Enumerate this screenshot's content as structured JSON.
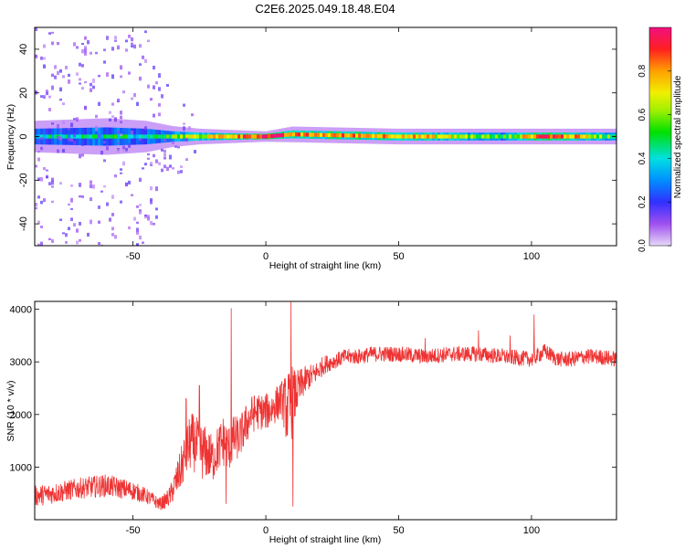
{
  "figure_title": "C2E6.2025.049.18.48.E04",
  "colors": {
    "snr_line": "#ee3333",
    "frame": "#000000",
    "background": "#ffffff"
  },
  "chart_data": [
    {
      "type": "heatmap",
      "title": "",
      "xlabel": "Height of straight line (km)",
      "ylabel": "Frequency (Hz)",
      "xlim": [
        -87,
        132
      ],
      "ylim": [
        -50,
        50
      ],
      "xticks": [
        -50,
        0,
        50,
        100
      ],
      "yticks": [
        -40,
        -20,
        0,
        20,
        40
      ],
      "colormap": "rainbow (purple-blue-cyan-green-yellow-orange-red-magenta)",
      "colorbar_label": "Normalized spectral amplitude",
      "colorbar_range": [
        0,
        1
      ],
      "colorbar_ticks": [
        "0.0",
        "0.2",
        "0.4",
        "0.6",
        "0.8"
      ],
      "description_points": [
        {
          "x": -87,
          "center_hz": 0,
          "half_width_hz": 6,
          "peak_amp": 0.35,
          "scatter_extent_hz": 50
        },
        {
          "x": -60,
          "center_hz": 0,
          "half_width_hz": 7,
          "peak_amp": 0.45,
          "scatter_extent_hz": 50
        },
        {
          "x": -45,
          "center_hz": 0,
          "half_width_hz": 6,
          "peak_amp": 0.4,
          "scatter_extent_hz": 50
        },
        {
          "x": -35,
          "center_hz": 0,
          "half_width_hz": 4,
          "peak_amp": 0.55,
          "scatter_extent_hz": 20
        },
        {
          "x": -25,
          "center_hz": 0,
          "half_width_hz": 3,
          "peak_amp": 0.65,
          "scatter_extent_hz": 8
        },
        {
          "x": 0,
          "center_hz": 0,
          "half_width_hz": 2,
          "peak_amp": 0.95,
          "scatter_extent_hz": 3
        },
        {
          "x": 10,
          "center_hz": 1,
          "half_width_hz": 3,
          "peak_amp": 0.8,
          "scatter_extent_hz": 3
        },
        {
          "x": 50,
          "center_hz": 0,
          "half_width_hz": 3,
          "peak_amp": 0.8,
          "scatter_extent_hz": 3
        },
        {
          "x": 90,
          "center_hz": 0,
          "half_width_hz": 3,
          "peak_amp": 0.5,
          "scatter_extent_hz": 3
        },
        {
          "x": 105,
          "center_hz": 0,
          "half_width_hz": 3,
          "peak_amp": 0.95,
          "scatter_extent_hz": 3
        },
        {
          "x": 132,
          "center_hz": 0,
          "half_width_hz": 3,
          "peak_amp": 0.5,
          "scatter_extent_hz": 3
        }
      ]
    },
    {
      "type": "line",
      "title": "",
      "xlabel": "Height of straight line (km)",
      "ylabel": "SNR (10 * v/v)",
      "xlim": [
        -87,
        132
      ],
      "ylim": [
        0,
        4150
      ],
      "xticks": [
        -50,
        0,
        50,
        100
      ],
      "yticks": [
        1000,
        2000,
        3000,
        4000
      ],
      "grid": false,
      "series": [
        {
          "x": [
            -87,
            -80,
            -70,
            -60,
            -55,
            -50,
            -45,
            -40,
            -38,
            -36,
            -34,
            -32,
            -30,
            -28,
            -26,
            -24,
            -22,
            -20,
            -18,
            -16,
            -14,
            -12,
            -10,
            -8,
            -6,
            -4,
            -2,
            0,
            2,
            4,
            6,
            8,
            9,
            10,
            11,
            12,
            14,
            16,
            18,
            20,
            22,
            25,
            30,
            35,
            40,
            50,
            60,
            70,
            80,
            90,
            100,
            105,
            110,
            115,
            120,
            125,
            132
          ],
          "values": [
            450,
            500,
            600,
            650,
            600,
            550,
            450,
            300,
            350,
            450,
            700,
            950,
            1300,
            1500,
            1400,
            1300,
            1250,
            1150,
            1350,
            1500,
            1350,
            1550,
            1550,
            1750,
            1950,
            2050,
            2050,
            2050,
            2100,
            2200,
            2300,
            2100,
            2150,
            2250,
            2350,
            2450,
            2600,
            2700,
            2750,
            2850,
            2950,
            3000,
            3100,
            3100,
            3150,
            3150,
            3100,
            3150,
            3150,
            3100,
            3050,
            3200,
            3050,
            3050,
            3100,
            3100,
            3050
          ],
          "noise_amplitude": [
            200,
            200,
            200,
            220,
            200,
            180,
            150,
            120,
            150,
            200,
            300,
            400,
            500,
            550,
            550,
            550,
            500,
            450,
            450,
            500,
            450,
            450,
            400,
            400,
            400,
            350,
            350,
            350,
            350,
            350,
            350,
            700,
            700,
            700,
            500,
            400,
            300,
            250,
            220,
            200,
            180,
            150,
            150,
            150,
            150,
            150,
            150,
            150,
            150,
            150,
            150,
            150,
            150,
            150,
            150,
            150,
            150
          ],
          "spikes": [
            [
              -13,
              4020
            ],
            [
              9.5,
              4150
            ],
            [
              10.2,
              250
            ],
            [
              -30,
              2300
            ],
            [
              -25,
              2550
            ],
            [
              101,
              3900
            ],
            [
              -15,
              300
            ],
            [
              60,
              3450
            ],
            [
              80,
              3600
            ],
            [
              92,
              3500
            ]
          ]
        }
      ]
    }
  ]
}
